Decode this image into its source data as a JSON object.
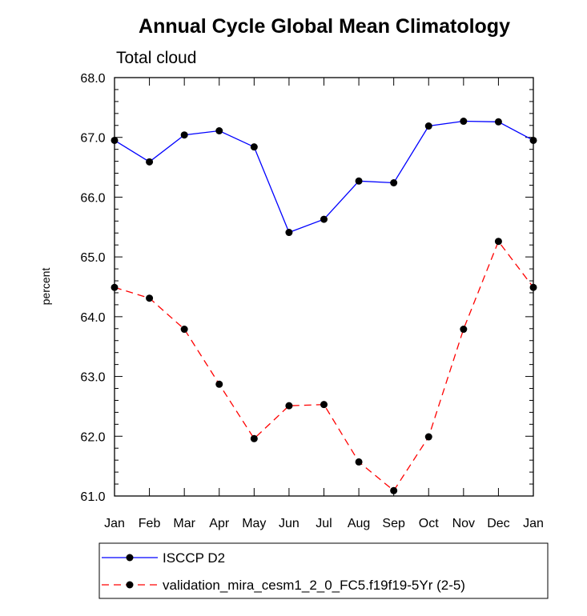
{
  "chart_data": {
    "type": "line",
    "title": "Annual Cycle Global Mean Climatology",
    "subtitle": "Total cloud",
    "xlabel": "",
    "ylabel": "percent",
    "categories": [
      "Jan",
      "Feb",
      "Mar",
      "Apr",
      "May",
      "Jun",
      "Jul",
      "Aug",
      "Sep",
      "Oct",
      "Nov",
      "Dec",
      "Jan"
    ],
    "ylim": [
      61.0,
      68.0
    ],
    "yticks": [
      "61.0",
      "62.0",
      "63.0",
      "64.0",
      "65.0",
      "66.0",
      "67.0",
      "68.0"
    ],
    "grid": false,
    "legend_position": "bottom",
    "series": [
      {
        "name": "ISCCP D2",
        "color": "#0000ff",
        "line_style": "solid",
        "marker": "filled-circle",
        "values": [
          66.95,
          66.59,
          67.04,
          67.11,
          66.84,
          65.41,
          65.63,
          66.27,
          66.24,
          67.19,
          67.27,
          67.26,
          66.95
        ]
      },
      {
        "name": "validation_mira_cesm1_2_0_FC5.f19f19-5Yr (2-5)",
        "color": "#ff0000",
        "line_style": "dashed",
        "marker": "filled-circle",
        "values": [
          64.49,
          64.31,
          63.79,
          62.87,
          61.96,
          62.51,
          62.53,
          61.57,
          61.09,
          61.99,
          63.79,
          65.26,
          64.49
        ]
      }
    ]
  }
}
